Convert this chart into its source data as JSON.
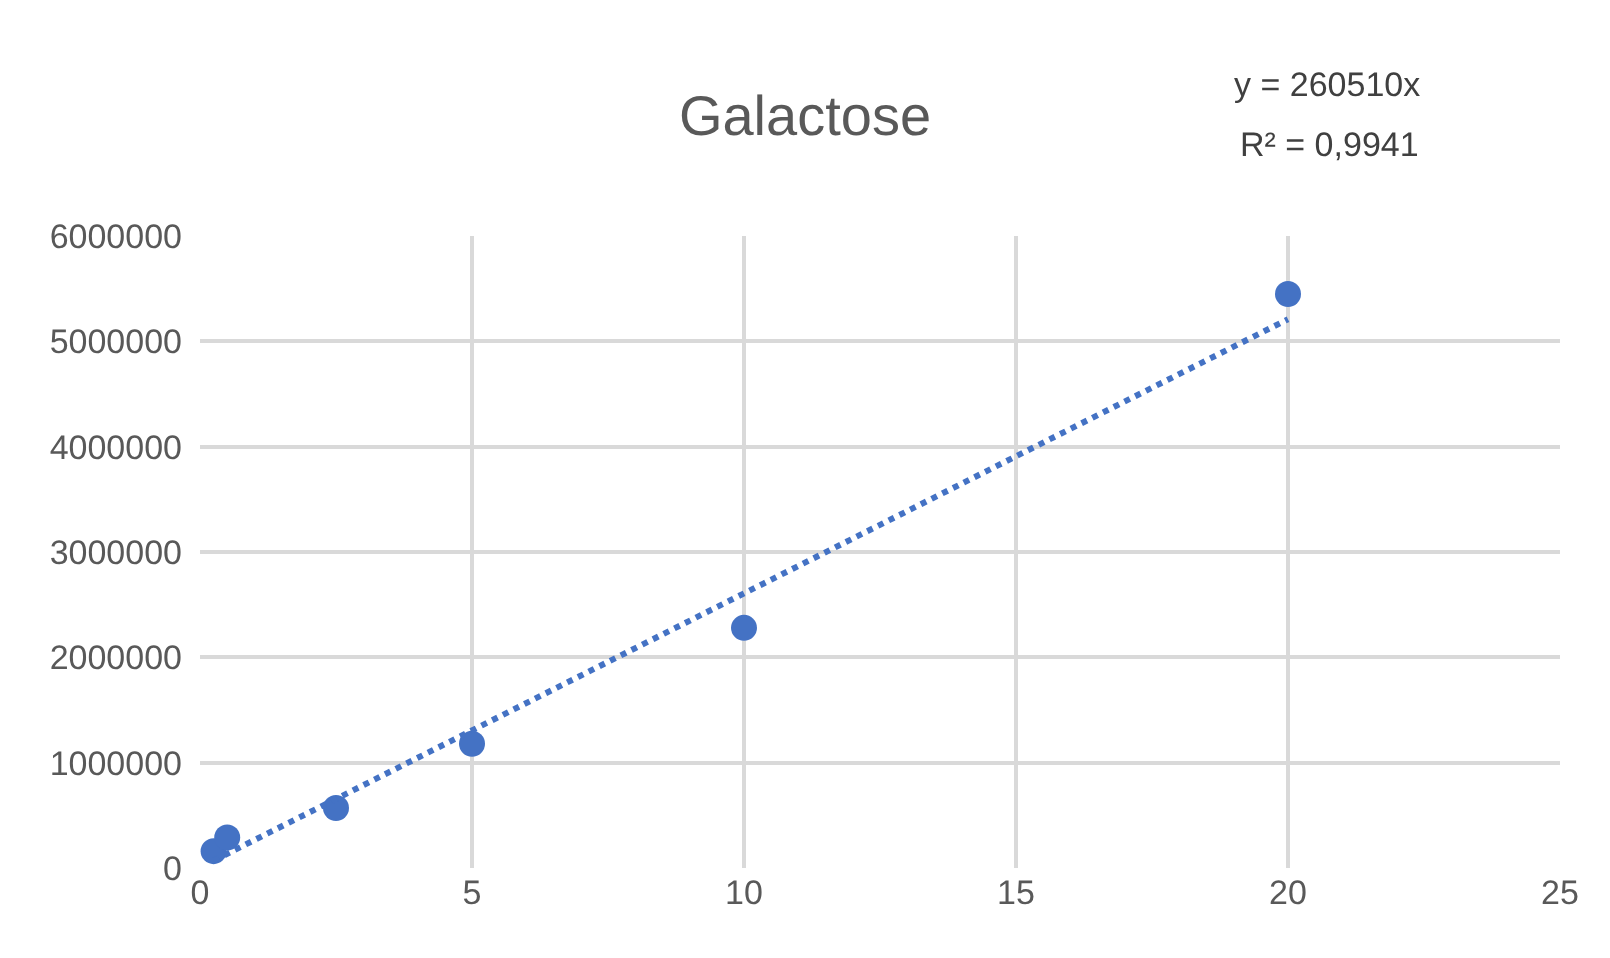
{
  "chart_data": {
    "type": "scatter",
    "title": "Galactose",
    "annotations": [
      "y = 260510x",
      "R² = 0,9941"
    ],
    "series": [
      {
        "color": "#4472c4",
        "marker": "circle",
        "x": [
          0.25,
          0.5,
          2.5,
          5,
          10,
          20
        ],
        "values": [
          160000,
          290000,
          570000,
          1180000,
          2280000,
          5450000
        ]
      },
      {
        "type": "line",
        "color": "#4472c4",
        "marker": "none",
        "line_style": "dotted",
        "x": [
          0.25,
          20
        ],
        "values": [
          70000,
          5210000
        ]
      }
    ],
    "xlim": [
      0,
      25
    ],
    "xticks": [
      0,
      5,
      10,
      15,
      20,
      25
    ],
    "ylim": [
      0,
      6000000
    ],
    "yticks": [
      0,
      1000000,
      2000000,
      3000000,
      4000000,
      5000000,
      6000000
    ],
    "grid": true,
    "legend": false
  }
}
